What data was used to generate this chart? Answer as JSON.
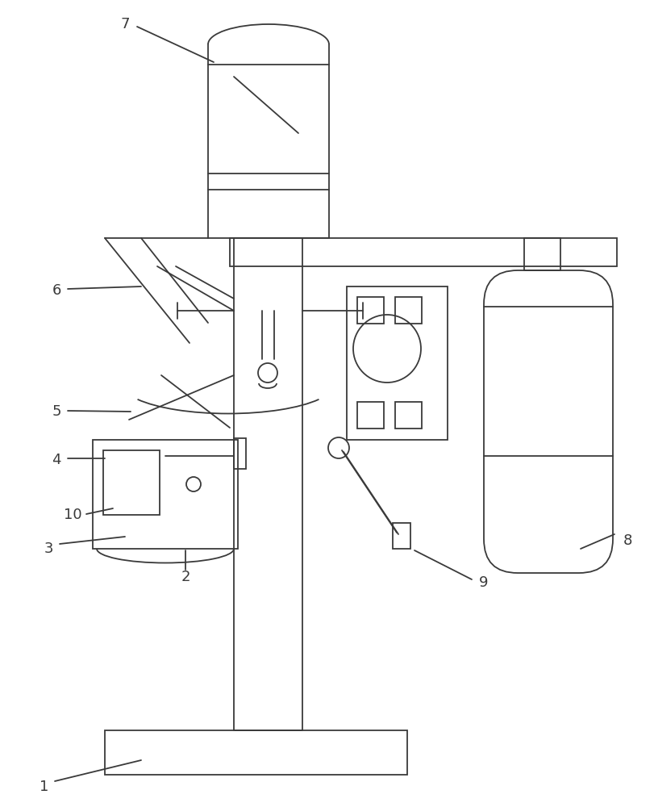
{
  "bg": "#ffffff",
  "lc": "#3a3a3a",
  "lw": 1.3
}
